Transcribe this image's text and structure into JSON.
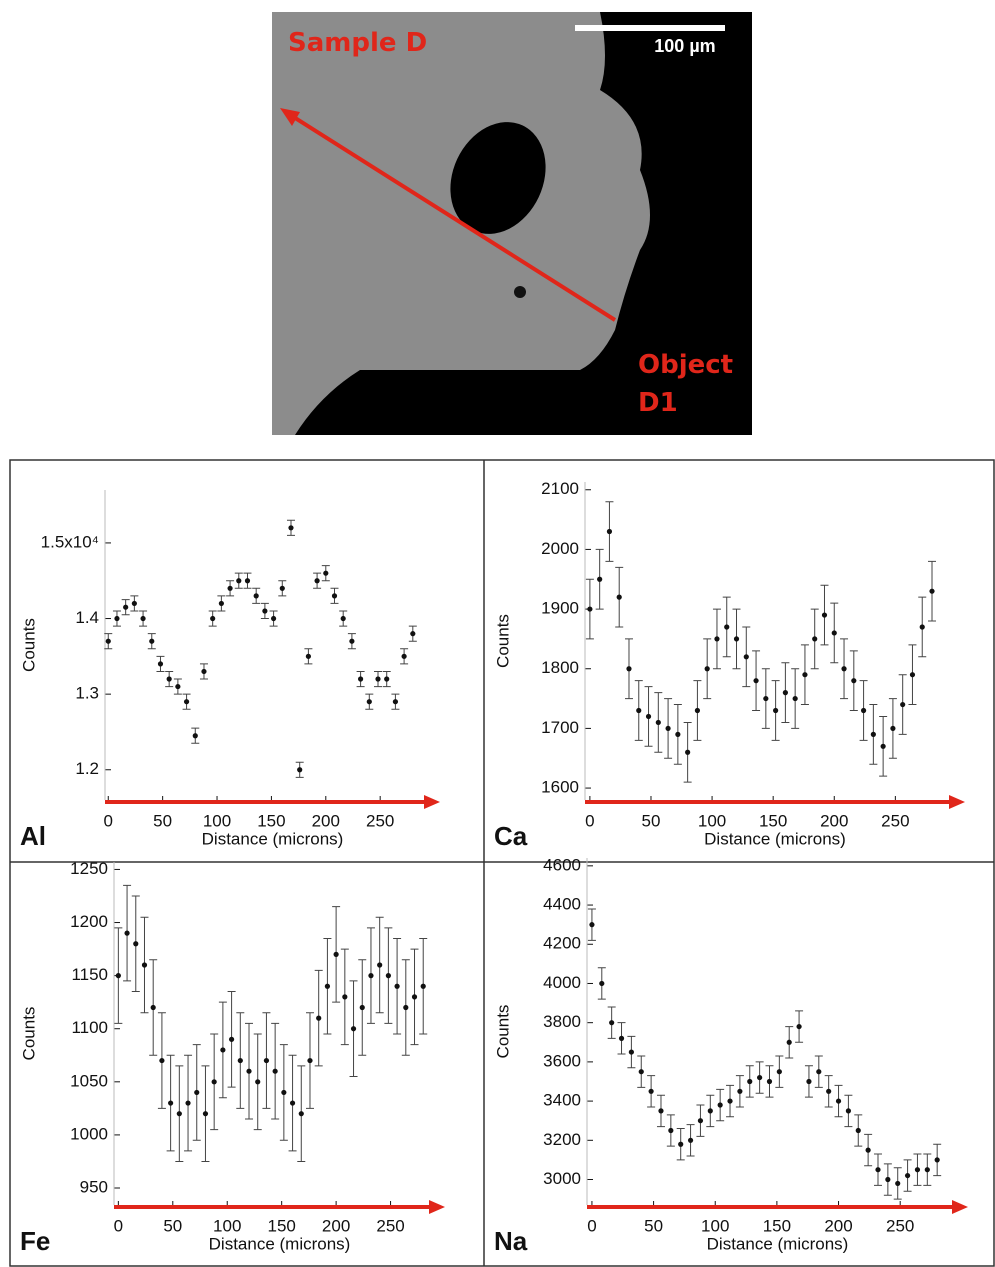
{
  "image": {
    "sample_label": "Sample D",
    "scale_label": "100 µm",
    "object_label": "Object D1"
  },
  "chart_data": [
    {
      "type": "scatter",
      "annotation": "Al",
      "x_label": "Distance (microns)",
      "y_label": "Counts",
      "xlim": [
        -3,
        305
      ],
      "ylim": [
        11600,
        15700
      ],
      "xticks": [
        0,
        50,
        100,
        150,
        200,
        250
      ],
      "yticks": [
        {
          "value": 12000,
          "label": "1.2"
        },
        {
          "value": 13000,
          "label": "1.3"
        },
        {
          "value": 14000,
          "label": "1.4"
        },
        {
          "value": 15000,
          "label": "1.5x10⁴"
        }
      ],
      "color": "#111111",
      "x": [
        0,
        8,
        16,
        24,
        32,
        40,
        48,
        56,
        64,
        72,
        80,
        88,
        96,
        104,
        112,
        120,
        128,
        136,
        144,
        152,
        160,
        168,
        176,
        184,
        192,
        200,
        208,
        216,
        224,
        232,
        240,
        248,
        256,
        264,
        272,
        280
      ],
      "values": [
        13700,
        14000,
        14150,
        14200,
        14000,
        13700,
        13400,
        13200,
        13100,
        12900,
        12450,
        13300,
        14000,
        14200,
        14400,
        14500,
        14500,
        14300,
        14100,
        14000,
        14400,
        15200,
        12000,
        13500,
        14500,
        14600,
        14300,
        14000,
        13700,
        13200,
        12900,
        13200,
        13200,
        12900,
        13500,
        13800
      ],
      "errors": [
        100,
        100,
        100,
        100,
        100,
        100,
        100,
        100,
        100,
        100,
        100,
        100,
        100,
        100,
        100,
        100,
        100,
        100,
        100,
        100,
        100,
        100,
        100,
        100,
        100,
        100,
        100,
        100,
        100,
        100,
        100,
        100,
        100,
        100,
        100,
        100
      ]
    },
    {
      "type": "scatter",
      "annotation": "Ca",
      "x_label": "Distance (microns)",
      "y_label": "Counts",
      "xlim": [
        -4,
        307
      ],
      "ylim": [
        1580,
        2113
      ],
      "xticks": [
        0,
        50,
        100,
        150,
        200,
        250
      ],
      "yticks": [
        1600,
        1700,
        1800,
        1900,
        2000,
        2100
      ],
      "color": "#111111",
      "x": [
        0,
        8,
        16,
        24,
        32,
        40,
        48,
        56,
        64,
        72,
        80,
        88,
        96,
        104,
        112,
        120,
        128,
        136,
        144,
        152,
        160,
        168,
        176,
        184,
        192,
        200,
        208,
        216,
        224,
        232,
        240,
        248,
        256,
        264,
        272,
        280
      ],
      "values": [
        1900,
        1950,
        2030,
        1920,
        1800,
        1730,
        1720,
        1710,
        1700,
        1690,
        1660,
        1730,
        1800,
        1850,
        1870,
        1850,
        1820,
        1780,
        1750,
        1730,
        1760,
        1750,
        1790,
        1850,
        1890,
        1860,
        1800,
        1780,
        1730,
        1690,
        1670,
        1700,
        1740,
        1790,
        1870,
        1930
      ],
      "errors": [
        50,
        50,
        50,
        50,
        50,
        50,
        50,
        50,
        50,
        50,
        50,
        50,
        50,
        50,
        50,
        50,
        50,
        50,
        50,
        50,
        50,
        50,
        50,
        50,
        50,
        50,
        50,
        50,
        50,
        50,
        50,
        50,
        50,
        50,
        50,
        50
      ]
    },
    {
      "type": "scatter",
      "annotation": "Fe",
      "x_label": "Distance (microns)",
      "y_label": "Counts",
      "xlim": [
        -4,
        300
      ],
      "ylim": [
        934,
        1257
      ],
      "xticks": [
        0,
        50,
        100,
        150,
        200,
        250
      ],
      "yticks": [
        950,
        1000,
        1050,
        1100,
        1150,
        1200,
        1250
      ],
      "color": "#111111",
      "x": [
        0,
        8,
        16,
        24,
        32,
        40,
        48,
        56,
        64,
        72,
        80,
        88,
        96,
        104,
        112,
        120,
        128,
        136,
        144,
        152,
        160,
        168,
        176,
        184,
        192,
        200,
        208,
        216,
        224,
        232,
        240,
        248,
        256,
        264,
        272,
        280
      ],
      "values": [
        1150,
        1190,
        1180,
        1160,
        1120,
        1070,
        1030,
        1020,
        1030,
        1040,
        1020,
        1050,
        1080,
        1090,
        1070,
        1060,
        1050,
        1070,
        1060,
        1040,
        1030,
        1020,
        1070,
        1110,
        1140,
        1170,
        1130,
        1100,
        1120,
        1150,
        1160,
        1150,
        1140,
        1120,
        1130,
        1140
      ],
      "errors": [
        45,
        45,
        45,
        45,
        45,
        45,
        45,
        45,
        45,
        45,
        45,
        45,
        45,
        45,
        45,
        45,
        45,
        45,
        45,
        45,
        45,
        45,
        45,
        45,
        45,
        45,
        45,
        45,
        45,
        45,
        45,
        45,
        45,
        45,
        45,
        45
      ]
    },
    {
      "type": "scatter",
      "annotation": "Na",
      "x_label": "Distance (microns)",
      "y_label": "Counts",
      "xlim": [
        -4,
        305
      ],
      "ylim": [
        2870,
        4640
      ],
      "xticks": [
        0,
        50,
        100,
        150,
        200,
        250
      ],
      "yticks": [
        3000,
        3200,
        3400,
        3600,
        3800,
        4000,
        4200,
        4400,
        4600
      ],
      "color": "#111111",
      "x": [
        0,
        8,
        16,
        24,
        32,
        40,
        48,
        56,
        64,
        72,
        80,
        88,
        96,
        104,
        112,
        120,
        128,
        136,
        144,
        152,
        160,
        168,
        176,
        184,
        192,
        200,
        208,
        216,
        224,
        232,
        240,
        248,
        256,
        264,
        272,
        280
      ],
      "values": [
        4300,
        4000,
        3800,
        3720,
        3650,
        3550,
        3450,
        3350,
        3250,
        3180,
        3200,
        3300,
        3350,
        3380,
        3400,
        3450,
        3500,
        3520,
        3500,
        3550,
        3700,
        3780,
        3500,
        3550,
        3450,
        3400,
        3350,
        3250,
        3150,
        3050,
        3000,
        2980,
        3020,
        3050,
        3050,
        3100
      ],
      "errors": [
        80,
        80,
        80,
        80,
        80,
        80,
        80,
        80,
        80,
        80,
        80,
        80,
        80,
        80,
        80,
        80,
        80,
        80,
        80,
        80,
        80,
        80,
        80,
        80,
        80,
        80,
        80,
        80,
        80,
        80,
        80,
        80,
        80,
        80,
        80,
        80
      ]
    }
  ]
}
